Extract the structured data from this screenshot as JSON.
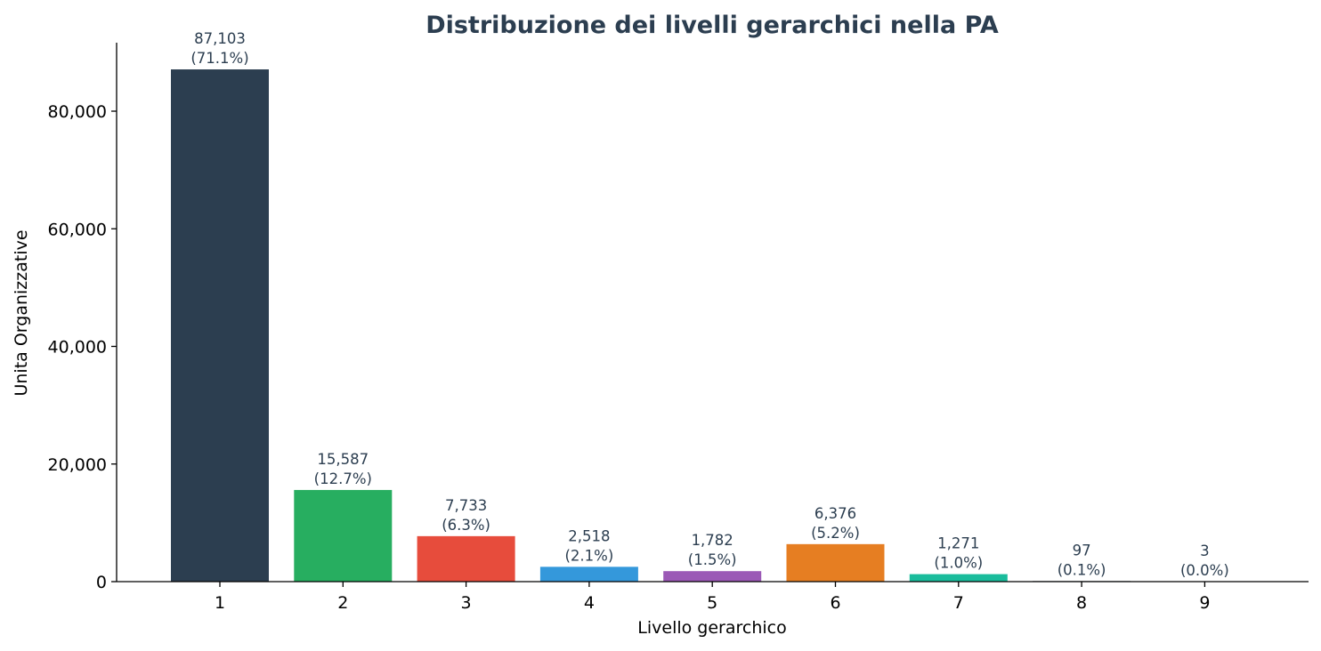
{
  "chart_data": {
    "type": "bar",
    "title": "Distribuzione dei livelli gerarchici nella PA",
    "xlabel": "Livello gerarchico",
    "ylabel": "Unita Organizzative",
    "categories": [
      "1",
      "2",
      "3",
      "4",
      "5",
      "6",
      "7",
      "8",
      "9"
    ],
    "values": [
      87103,
      15587,
      7733,
      2518,
      1782,
      6376,
      1271,
      97,
      3
    ],
    "value_labels": [
      "87,103",
      "15,587",
      "7,733",
      "2,518",
      "1,782",
      "6,376",
      "1,271",
      "97",
      "3"
    ],
    "percent_labels": [
      "(71.1%)",
      "(12.7%)",
      "(6.3%)",
      "(2.1%)",
      "(1.5%)",
      "(5.2%)",
      "(1.0%)",
      "(0.1%)",
      "(0.0%)"
    ],
    "colors": [
      "#2c3e50",
      "#27ae60",
      "#e74c3c",
      "#3498db",
      "#9b59b6",
      "#e67e22",
      "#1abc9c",
      "#2c3e50",
      "#27ae60"
    ],
    "yticks": [
      0,
      20000,
      40000,
      60000,
      80000
    ],
    "ytick_labels": [
      "0",
      "20,000",
      "40,000",
      "60,000",
      "80,000"
    ],
    "ylim": [
      0,
      91458
    ],
    "grid": false,
    "legend": "none"
  }
}
